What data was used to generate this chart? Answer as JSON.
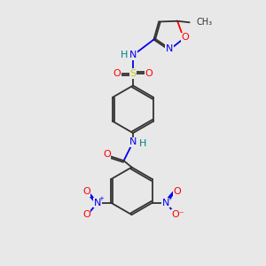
{
  "bg_color": "#e8e8e8",
  "C": "#333333",
  "N": "#0000ee",
  "O": "#ff0000",
  "S": "#cccc00",
  "H": "#008080",
  "lw": 1.3,
  "fs": 8.0,
  "fs_small": 7.0
}
